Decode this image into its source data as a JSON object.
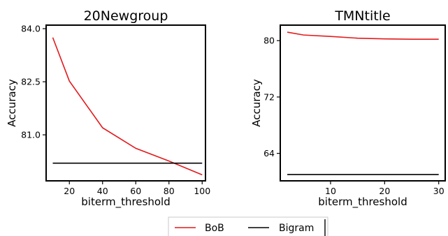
{
  "chart_data": [
    {
      "type": "line",
      "title": "20Newgroup",
      "xlabel": "biterm_threshold",
      "ylabel": "Accuracy",
      "xlim": [
        6,
        102
      ],
      "ylim": [
        79.7,
        84.1
      ],
      "xticks": [
        20,
        40,
        60,
        80,
        100
      ],
      "yticks": [
        81.0,
        82.5,
        84.0
      ],
      "ytick_labels": [
        "81.0",
        "82.5",
        "84.0"
      ],
      "grid": false,
      "series": [
        {
          "name": "BoB",
          "color": "#e31a1c",
          "x": [
            10,
            20,
            40,
            60,
            80,
            100
          ],
          "y": [
            83.75,
            82.52,
            81.2,
            80.62,
            80.26,
            79.87
          ]
        },
        {
          "name": "Bigram",
          "color": "#000000",
          "x": [
            10,
            100
          ],
          "y": [
            80.2,
            80.2
          ]
        }
      ]
    },
    {
      "type": "line",
      "title": "TMNtitle",
      "xlabel": "biterm_threshold",
      "ylabel": "Accuracy",
      "xlim": [
        0.7,
        31.2
      ],
      "ylim": [
        60.1,
        82.2
      ],
      "xticks": [
        10,
        20,
        30
      ],
      "yticks": [
        64,
        72,
        80
      ],
      "grid": false,
      "series": [
        {
          "name": "BoB",
          "color": "#e31a1c",
          "x": [
            2,
            5,
            10,
            15,
            20,
            25,
            30
          ],
          "y": [
            81.2,
            80.8,
            80.6,
            80.35,
            80.25,
            80.2,
            80.2
          ]
        },
        {
          "name": "Bigram",
          "color": "#000000",
          "x": [
            2,
            30
          ],
          "y": [
            61.0,
            61.0
          ]
        }
      ]
    }
  ],
  "legend": {
    "placement": "bottom-center",
    "items": [
      {
        "label": "BoB",
        "color": "#e31a1c"
      },
      {
        "label": "Bigram",
        "color": "#000000"
      }
    ]
  }
}
